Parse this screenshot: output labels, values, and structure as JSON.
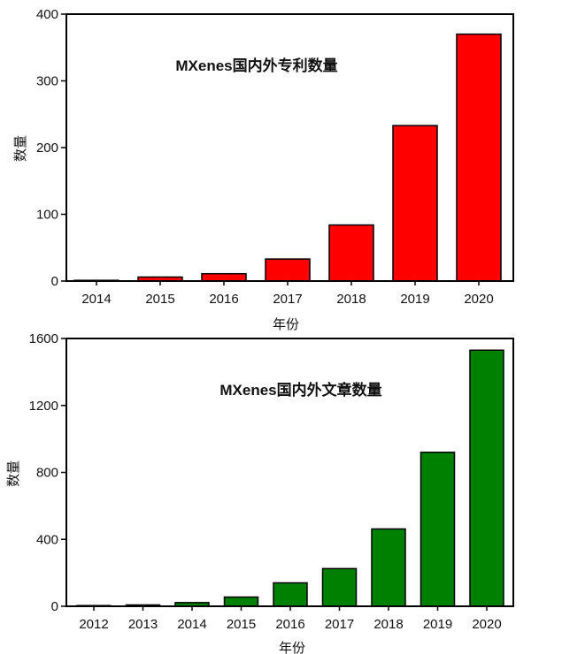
{
  "chart_data": [
    {
      "type": "bar",
      "title": "MXenes国内外专利数量",
      "xlabel": "年份",
      "ylabel": "数量",
      "categories": [
        "2014",
        "2015",
        "2016",
        "2017",
        "2018",
        "2019",
        "2020"
      ],
      "values": [
        0,
        6,
        11,
        33,
        84,
        233,
        370
      ],
      "ylim": [
        0,
        400
      ],
      "yticks": [
        0,
        100,
        200,
        300,
        400
      ],
      "bar_color": "#ff0000",
      "grid": false
    },
    {
      "type": "bar",
      "title": "MXenes国内外文章数量",
      "xlabel": "年份",
      "ylabel": "数量",
      "categories": [
        "2012",
        "2013",
        "2014",
        "2015",
        "2016",
        "2017",
        "2018",
        "2019",
        "2020"
      ],
      "values": [
        3,
        8,
        22,
        55,
        140,
        225,
        462,
        920,
        1530
      ],
      "ylim": [
        0,
        1600
      ],
      "yticks": [
        0,
        400,
        800,
        1200,
        1600
      ],
      "bar_color": "#008000",
      "grid": false
    }
  ]
}
